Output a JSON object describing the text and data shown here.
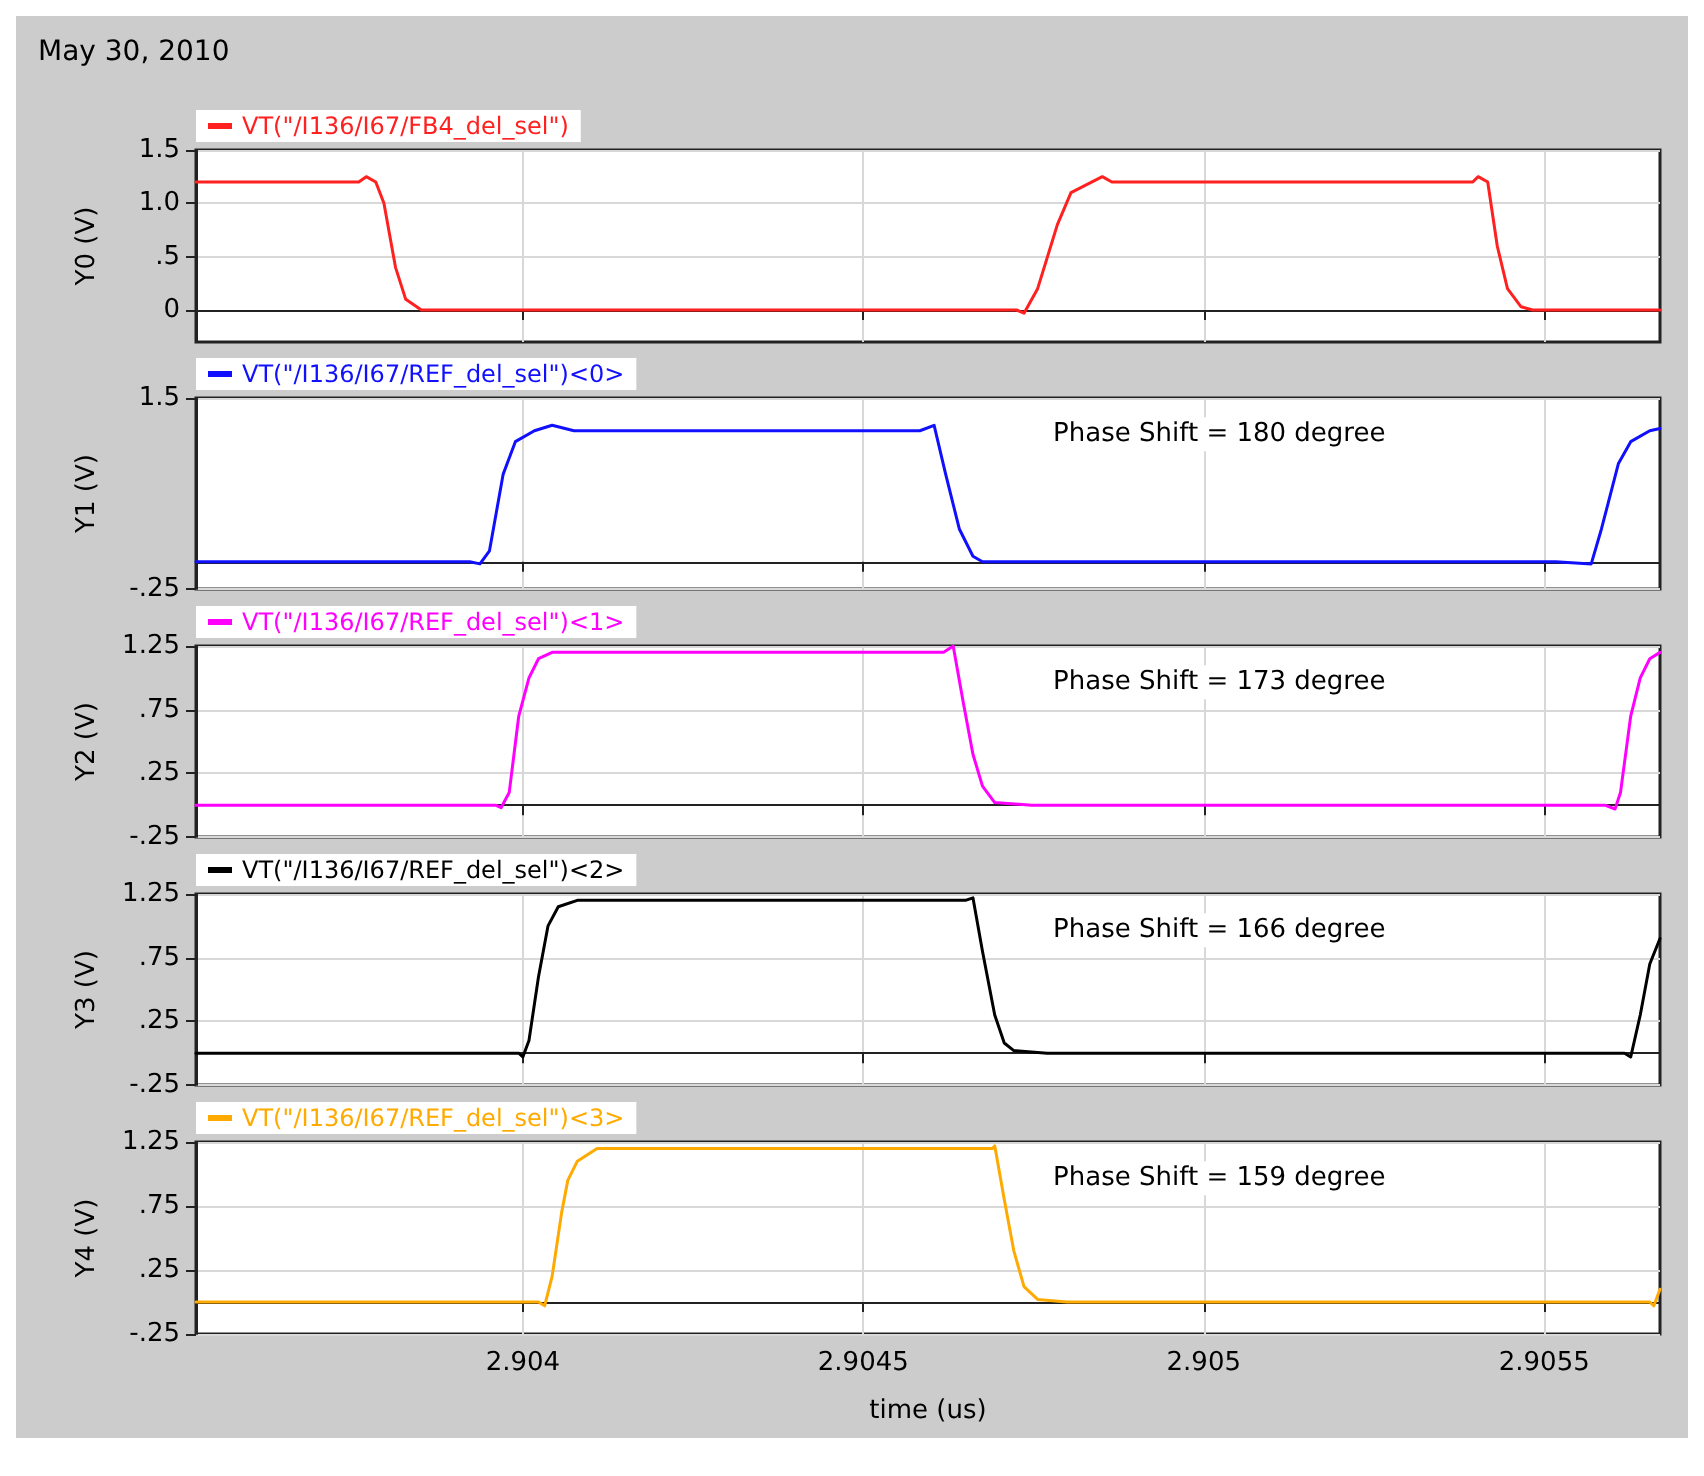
{
  "chart_data": [
    {
      "type": "line",
      "title": "May 30, 2010",
      "ylabel": "Y0 (V)",
      "legend": "top left",
      "grid": true,
      "tick_labels": "y",
      "xlim": [
        2.90352,
        2.90567
      ],
      "xticks": [
        2.904,
        2.9045,
        2.905,
        2.9055
      ],
      "ylim": [
        -0.3,
        1.5
      ],
      "yticks": [
        0,
        {
          "value": 0.5,
          "label": ".5"
        },
        {
          "value": 1,
          "label": "1.0"
        },
        1.5
      ],
      "series": [
        {
          "name": "VT(\"/I136/I67/FB4_del_sel\")",
          "color": "#ff2020",
          "x": [
            2.90352,
            2.903759,
            2.90377,
            2.903784,
            2.903796,
            2.903813,
            2.903828,
            2.903851,
            2.904725,
            2.904736,
            2.904756,
            2.904785,
            2.904805,
            2.904851,
            2.904865,
            2.905395,
            2.905403,
            2.905417,
            2.905431,
            2.905446,
            2.905466,
            2.905483,
            2.90567
          ],
          "values": [
            1.2,
            1.2,
            1.25,
            1.2,
            1.0,
            0.4,
            0.1,
            0,
            0,
            -0.03,
            0.2,
            0.8,
            1.1,
            1.25,
            1.2,
            1.2,
            1.25,
            1.2,
            0.6,
            0.2,
            0.03,
            0,
            0
          ]
        }
      ]
    },
    {
      "type": "line",
      "ylabel": "Y1 (V)",
      "legend": "top left",
      "grid": true,
      "tick_labels": "y",
      "annotations": [
        "Phase Shift = 180 degree"
      ],
      "xlim": [
        2.90352,
        2.90567
      ],
      "xticks": [
        2.904,
        2.9045,
        2.905,
        2.9055
      ],
      "ylim": [
        -0.25,
        1.5
      ],
      "yticks": [
        {
          "value": -0.25,
          "label": "-.25"
        },
        1.5
      ],
      "series": [
        {
          "name": "VT(\"/I136/I67/REF_del_sel\")<0>",
          "color": "#1010ff",
          "x": [
            2.90352,
            2.903922,
            2.903937,
            2.903951,
            2.903971,
            2.903989,
            2.904017,
            2.904043,
            2.904075,
            2.904583,
            2.904604,
            2.904621,
            2.904641,
            2.904661,
            2.904675,
            2.905517,
            2.905569,
            2.905584,
            2.905609,
            2.905627,
            2.905655,
            2.90567
          ],
          "values": [
            0,
            0,
            -0.02,
            0.1,
            0.8,
            1.1,
            1.2,
            1.25,
            1.2,
            1.2,
            1.25,
            0.8,
            0.3,
            0.05,
            0,
            0,
            -0.02,
            0.3,
            0.9,
            1.1,
            1.2,
            1.22
          ]
        }
      ]
    },
    {
      "type": "line",
      "ylabel": "Y2 (V)",
      "legend": "top left",
      "grid": true,
      "tick_labels": "y",
      "annotations": [
        "Phase Shift = 173 degree"
      ],
      "xlim": [
        2.90352,
        2.90567
      ],
      "xticks": [
        2.904,
        2.9045,
        2.905,
        2.9055
      ],
      "ylim": [
        -0.25,
        1.25
      ],
      "yticks": [
        {
          "value": -0.25,
          "label": "-.25"
        },
        {
          "value": 0.25,
          "label": ".25"
        },
        {
          "value": 0.75,
          "label": ".75"
        },
        1.25
      ],
      "series": [
        {
          "name": "VT(\"/I136/I67/REF_del_sel\")<1>",
          "color": "#ff00ff",
          "x": [
            2.90352,
            2.90396,
            2.903968,
            2.90398,
            2.903994,
            2.904009,
            2.904023,
            2.904043,
            2.904618,
            2.904632,
            2.904647,
            2.904661,
            2.904675,
            2.904693,
            2.904747,
            2.905589,
            2.905604,
            2.905612,
            2.905627,
            2.905641,
            2.905655,
            2.90567
          ],
          "values": [
            0,
            0,
            -0.02,
            0.1,
            0.7,
            1.0,
            1.15,
            1.2,
            1.2,
            1.25,
            0.8,
            0.4,
            0.15,
            0.02,
            0,
            0,
            -0.03,
            0.1,
            0.7,
            1.0,
            1.15,
            1.2
          ]
        }
      ]
    },
    {
      "type": "line",
      "ylabel": "Y3 (V)",
      "legend": "top left",
      "grid": true,
      "tick_labels": "y",
      "annotations": [
        "Phase Shift = 166 degree"
      ],
      "xlim": [
        2.90352,
        2.90567
      ],
      "xticks": [
        2.904,
        2.9045,
        2.905,
        2.9055
      ],
      "ylim": [
        -0.25,
        1.25
      ],
      "yticks": [
        {
          "value": -0.25,
          "label": "-.25"
        },
        {
          "value": 0.25,
          "label": ".25"
        },
        {
          "value": 0.75,
          "label": ".75"
        },
        1.25
      ],
      "series": [
        {
          "name": "VT(\"/I136/I67/REF_del_sel\")<2>",
          "color": "#000000",
          "x": [
            2.90352,
            2.903994,
            2.904,
            2.904009,
            2.904023,
            2.904037,
            2.904052,
            2.90408,
            2.90465,
            2.904661,
            2.904675,
            2.904693,
            2.904707,
            2.904721,
            2.90477,
            2.905618,
            2.905627,
            2.905641,
            2.905655,
            2.90567
          ],
          "values": [
            0,
            0,
            -0.03,
            0.1,
            0.6,
            1.0,
            1.15,
            1.2,
            1.2,
            1.22,
            0.8,
            0.3,
            0.08,
            0.02,
            0,
            0,
            -0.03,
            0.3,
            0.7,
            0.9
          ]
        }
      ]
    },
    {
      "type": "line",
      "ylabel": "Y4 (V)",
      "xlabel": "time (us)",
      "legend": "top left",
      "grid": true,
      "annotations": [
        "Phase Shift = 159 degree"
      ],
      "xlim": [
        2.90352,
        2.90567
      ],
      "xticks": [
        2.904,
        2.9045,
        2.905,
        2.9055
      ],
      "ylim": [
        -0.25,
        1.25
      ],
      "yticks": [
        {
          "value": -0.25,
          "label": "-.25"
        },
        {
          "value": 0.25,
          "label": ".25"
        },
        {
          "value": 0.75,
          "label": ".75"
        },
        1.25
      ],
      "series": [
        {
          "name": "VT(\"/I136/I67/REF_del_sel\")<3>",
          "color": "#ffaa00",
          "x": [
            2.90352,
            2.904023,
            2.904032,
            2.904043,
            2.904057,
            2.904066,
            2.90408,
            2.904109,
            2.90469,
            2.904693,
            2.904707,
            2.904721,
            2.904736,
            2.904756,
            2.904799,
            2.905655,
            2.905661,
            2.90567
          ],
          "values": [
            0,
            0,
            -0.03,
            0.2,
            0.7,
            0.95,
            1.1,
            1.2,
            1.2,
            1.22,
            0.8,
            0.4,
            0.12,
            0.02,
            0,
            0,
            -0.03,
            0.1
          ]
        }
      ]
    }
  ]
}
